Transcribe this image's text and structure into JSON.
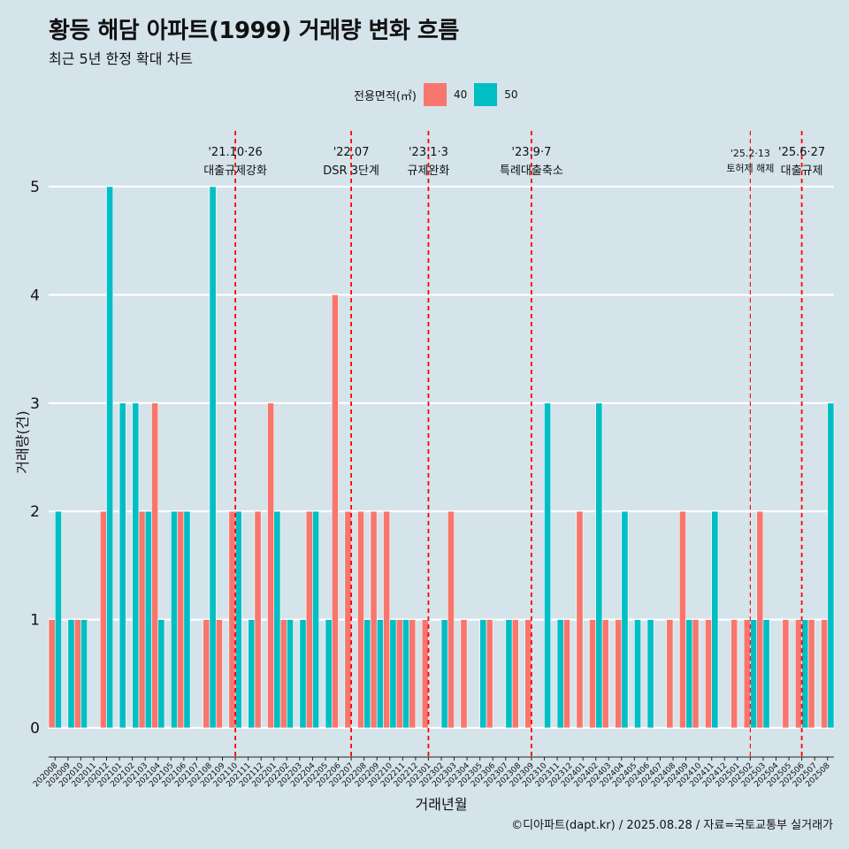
{
  "title": "황등 해담 아파트(1999) 거래량 변화 흐름",
  "subtitle": "최근 5년 한정 확대 차트",
  "caption": "©디아파트(dapt.kr) / 2025.08.28 / 자료=국토교통부 실거래가",
  "legend": {
    "title": "전용면적(㎡)",
    "items": [
      {
        "label": "40",
        "color": "#f8766d"
      },
      {
        "label": "50",
        "color": "#00bfc4"
      }
    ]
  },
  "chart_data": {
    "type": "bar",
    "xlabel": "거래년월",
    "ylabel": "거래량(건)",
    "ylim": [
      0,
      5
    ],
    "yticks": [
      0,
      1,
      2,
      3,
      4,
      5
    ],
    "grid": true,
    "legend_position": "top",
    "categories": [
      "202008",
      "202009",
      "202010",
      "202011",
      "202012",
      "202101",
      "202102",
      "202103",
      "202104",
      "202105",
      "202106",
      "202107",
      "202108",
      "202109",
      "202110",
      "202111",
      "202112",
      "202201",
      "202202",
      "202203",
      "202204",
      "202205",
      "202206",
      "202207",
      "202208",
      "202209",
      "202210",
      "202211",
      "202212",
      "202301",
      "202302",
      "202303",
      "202304",
      "202305",
      "202306",
      "202307",
      "202308",
      "202309",
      "202310",
      "202311",
      "202312",
      "202401",
      "202402",
      "202403",
      "202404",
      "202405",
      "202406",
      "202407",
      "202408",
      "202409",
      "202410",
      "202411",
      "202412",
      "202501",
      "202502",
      "202503",
      "202504",
      "202505",
      "202506",
      "202507",
      "202508"
    ],
    "series": [
      {
        "name": "40",
        "color": "#f8766d",
        "values": [
          1,
          0,
          1,
          0,
          2,
          0,
          0,
          2,
          3,
          0,
          2,
          0,
          1,
          1,
          2,
          0,
          2,
          3,
          1,
          0,
          2,
          0,
          4,
          2,
          2,
          2,
          2,
          1,
          1,
          1,
          0,
          2,
          1,
          0,
          1,
          0,
          1,
          1,
          0,
          0,
          1,
          2,
          1,
          1,
          1,
          0,
          0,
          0,
          1,
          2,
          1,
          1,
          0,
          1,
          1,
          2,
          0,
          1,
          1,
          1,
          1
        ]
      },
      {
        "name": "50",
        "color": "#00bfc4",
        "values": [
          2,
          1,
          1,
          0,
          5,
          3,
          3,
          2,
          1,
          2,
          2,
          0,
          5,
          0,
          2,
          1,
          0,
          2,
          1,
          1,
          2,
          1,
          0,
          0,
          1,
          1,
          1,
          1,
          0,
          0,
          1,
          0,
          0,
          1,
          0,
          1,
          0,
          0,
          3,
          1,
          0,
          0,
          3,
          0,
          2,
          1,
          1,
          0,
          0,
          1,
          0,
          2,
          0,
          0,
          1,
          1,
          0,
          0,
          1,
          0,
          3
        ]
      }
    ],
    "annotations": [
      {
        "month": "202110",
        "date": "'21.10·26",
        "label": "대출규제강화",
        "width": "thick"
      },
      {
        "month": "202207",
        "date": "'22.07",
        "label": "DSR 3단계",
        "width": "thick"
      },
      {
        "month": "202301",
        "date": "'23.1·3",
        "label": "규제완화",
        "width": "thick"
      },
      {
        "month": "202309",
        "date": "'23.9·7",
        "label": "특례대출축소",
        "width": "thick"
      },
      {
        "month": "202502",
        "date": "'25.2·13",
        "label": "토허제 해제",
        "width": "thin"
      },
      {
        "month": "202506",
        "date": "'25.6·27",
        "label": "대출규제",
        "width": "thick"
      }
    ]
  }
}
